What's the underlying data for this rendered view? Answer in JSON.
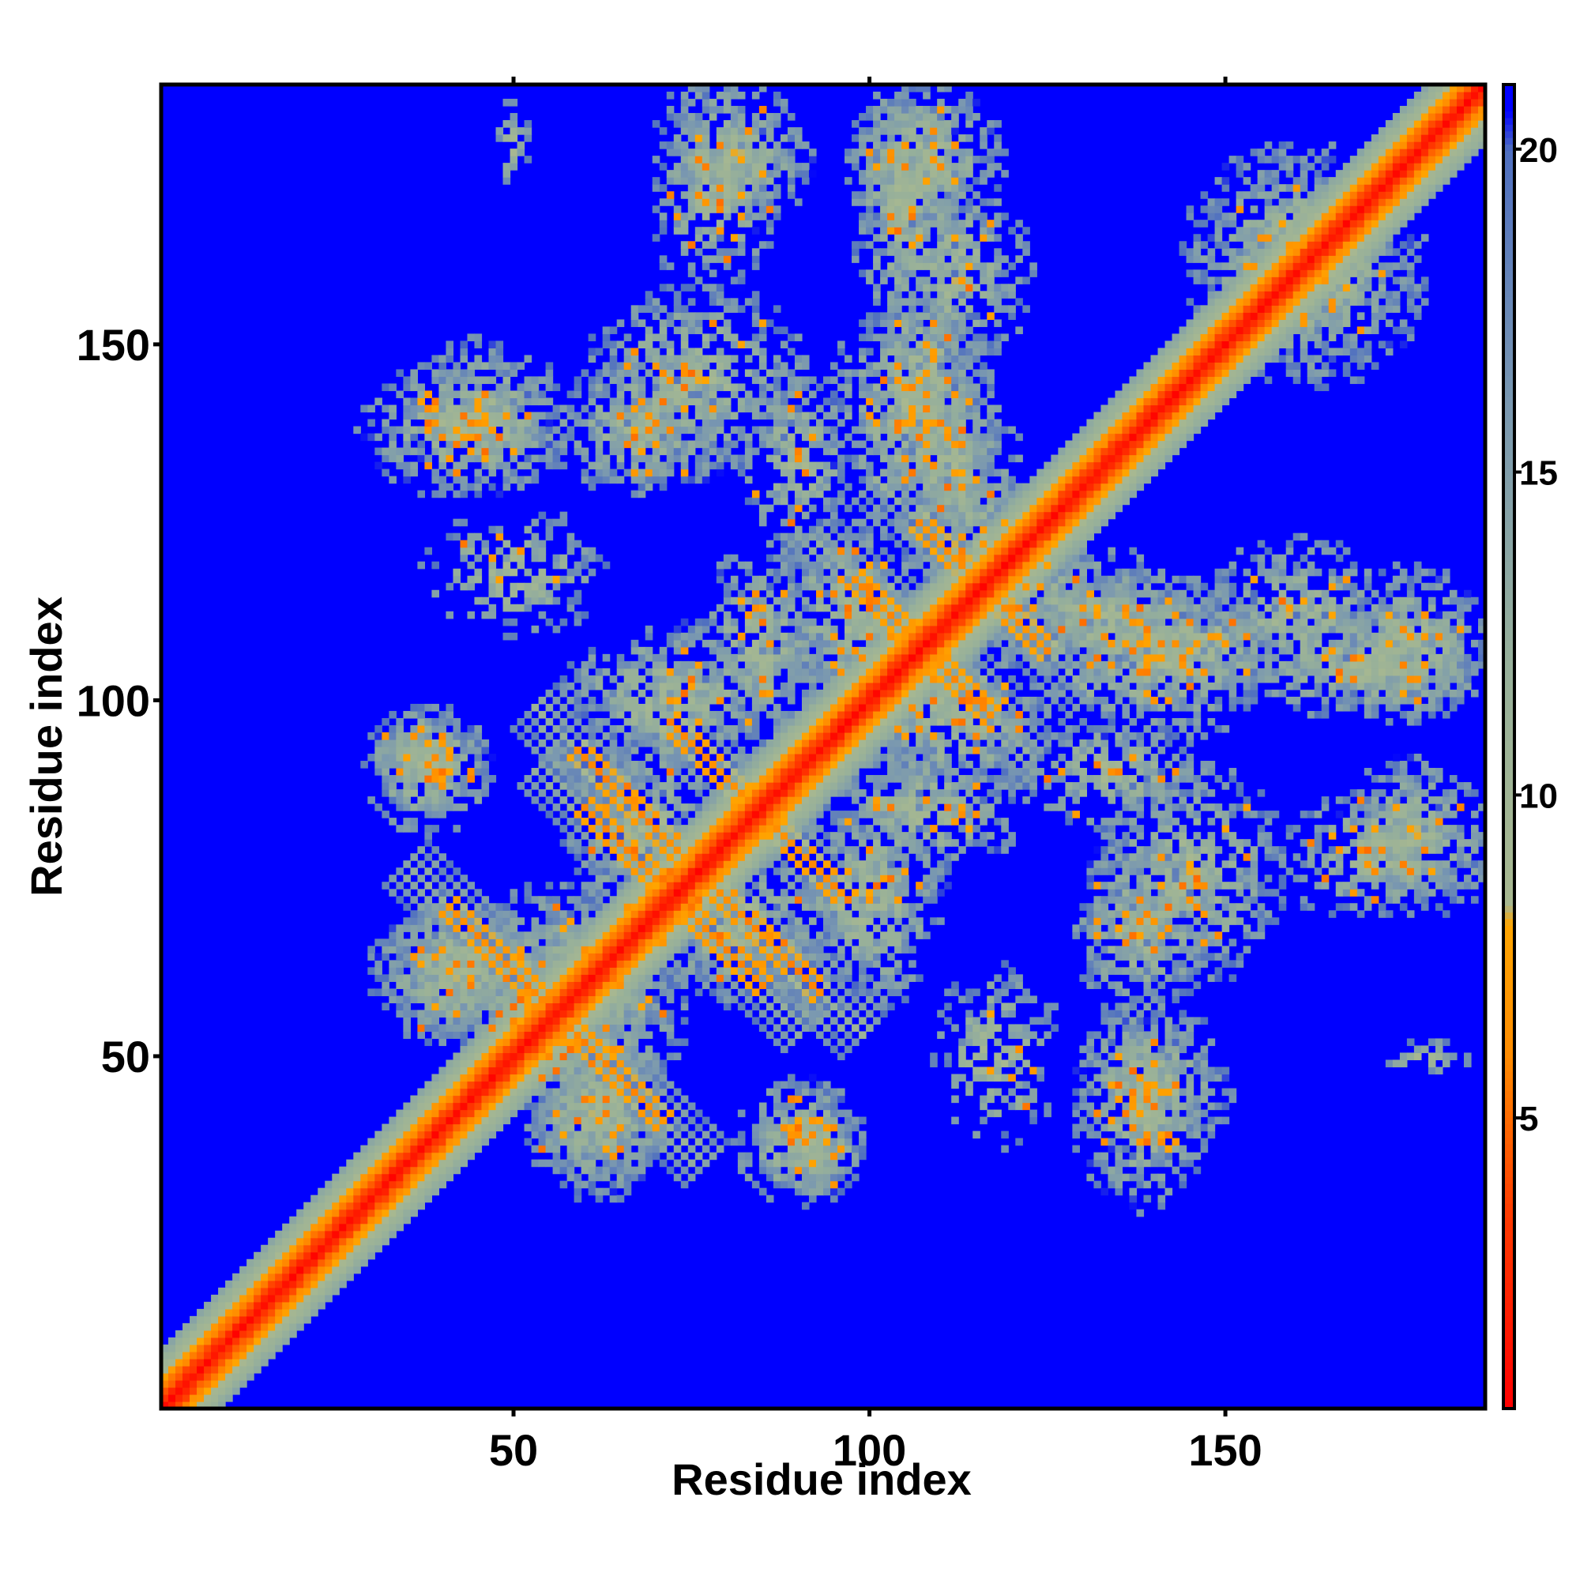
{
  "chart_data": {
    "type": "heatmap",
    "title": "",
    "xlabel": "Residue index",
    "ylabel": "Residue index",
    "xlim": [
      1,
      186
    ],
    "ylim": [
      1,
      186
    ],
    "x_ticks": [
      50,
      100,
      150
    ],
    "y_ticks": [
      50,
      100,
      150
    ],
    "colorbar": {
      "ticks": [
        5,
        10,
        15,
        20
      ],
      "range": [
        0.5,
        21
      ],
      "stops": [
        {
          "value": 0.5,
          "color": "#ff0000"
        },
        {
          "value": 3.5,
          "color": "#ff3a00"
        },
        {
          "value": 6.0,
          "color": "#ff8c00"
        },
        {
          "value": 8.0,
          "color": "#ffa500"
        },
        {
          "value": 8.3,
          "color": "#a8b890"
        },
        {
          "value": 12.0,
          "color": "#97b09a"
        },
        {
          "value": 16.0,
          "color": "#7a98b0"
        },
        {
          "value": 20.0,
          "color": "#4f6fc0"
        },
        {
          "value": 20.6,
          "color": "#0000ff"
        },
        {
          "value": 21.0,
          "color": "#0000ff"
        }
      ]
    },
    "background_color": "#0000ff",
    "contact_bands": [
      {
        "i": 64,
        "j": 48,
        "len": 7,
        "dir": "anti",
        "d": 7
      },
      {
        "i": 90,
        "j": 79,
        "len": 7,
        "dir": "anti",
        "d": 7
      },
      {
        "i": 66,
        "j": 79,
        "len": 6,
        "dir": "anti",
        "d": 7
      },
      {
        "i": 86,
        "j": 66,
        "len": 7,
        "dir": "anti",
        "d": 7
      },
      {
        "i": 58,
        "j": 54,
        "len": 6,
        "dir": "anti",
        "d": 7
      },
      {
        "i": 120,
        "j": 112,
        "len": 5,
        "dir": "anti",
        "d": 7
      },
      {
        "i": 111,
        "j": 104,
        "len": 6,
        "dir": "anti",
        "d": 7
      }
    ],
    "contact_clusters": [
      {
        "x": 38,
        "y": 92,
        "rx": 6,
        "ry": 6,
        "dens": 0.55
      },
      {
        "x": 42,
        "y": 62,
        "rx": 8,
        "ry": 7,
        "dens": 0.55
      },
      {
        "x": 42,
        "y": 138,
        "rx": 10,
        "ry": 7,
        "dens": 0.5
      },
      {
        "x": 68,
        "y": 138,
        "rx": 10,
        "ry": 7,
        "dens": 0.55
      },
      {
        "x": 81,
        "y": 176,
        "rx": 8,
        "ry": 8,
        "dens": 0.5
      },
      {
        "x": 108,
        "y": 176,
        "rx": 8,
        "ry": 8,
        "dens": 0.5
      },
      {
        "x": 108,
        "y": 146,
        "rx": 7,
        "ry": 10,
        "dens": 0.5
      },
      {
        "x": 90,
        "y": 134,
        "rx": 6,
        "ry": 10,
        "dens": 0.45
      },
      {
        "x": 58,
        "y": 56,
        "rx": 12,
        "ry": 12,
        "dens": 0.55
      },
      {
        "x": 68,
        "y": 82,
        "rx": 8,
        "ry": 10,
        "dens": 0.5
      },
      {
        "x": 85,
        "y": 108,
        "rx": 7,
        "ry": 10,
        "dens": 0.5
      },
      {
        "x": 100,
        "y": 72,
        "rx": 8,
        "ry": 12,
        "dens": 0.5
      },
      {
        "x": 112,
        "y": 98,
        "rx": 10,
        "ry": 10,
        "dens": 0.55
      },
      {
        "x": 122,
        "y": 116,
        "rx": 8,
        "ry": 8,
        "dens": 0.5
      },
      {
        "x": 140,
        "y": 106,
        "rx": 12,
        "ry": 9,
        "dens": 0.55
      },
      {
        "x": 170,
        "y": 105,
        "rx": 14,
        "ry": 6,
        "dens": 0.5
      },
      {
        "x": 172,
        "y": 78,
        "rx": 12,
        "ry": 7,
        "dens": 0.45
      },
      {
        "x": 145,
        "y": 76,
        "rx": 10,
        "ry": 12,
        "dens": 0.5
      },
      {
        "x": 140,
        "y": 46,
        "rx": 8,
        "ry": 9,
        "dens": 0.5
      },
      {
        "x": 90,
        "y": 38,
        "rx": 7,
        "ry": 7,
        "dens": 0.5
      },
      {
        "x": 62,
        "y": 42,
        "rx": 8,
        "ry": 9,
        "dens": 0.5
      },
      {
        "x": 160,
        "y": 162,
        "rx": 12,
        "ry": 12,
        "dens": 0.5
      },
      {
        "x": 112,
        "y": 132,
        "rx": 7,
        "ry": 10,
        "dens": 0.5
      },
      {
        "x": 112,
        "y": 160,
        "rx": 8,
        "ry": 10,
        "dens": 0.5
      },
      {
        "x": 178,
        "y": 50,
        "rx": 5,
        "ry": 2,
        "dens": 0.4
      },
      {
        "x": 118,
        "y": 50,
        "rx": 7,
        "ry": 10,
        "dens": 0.3
      }
    ]
  }
}
